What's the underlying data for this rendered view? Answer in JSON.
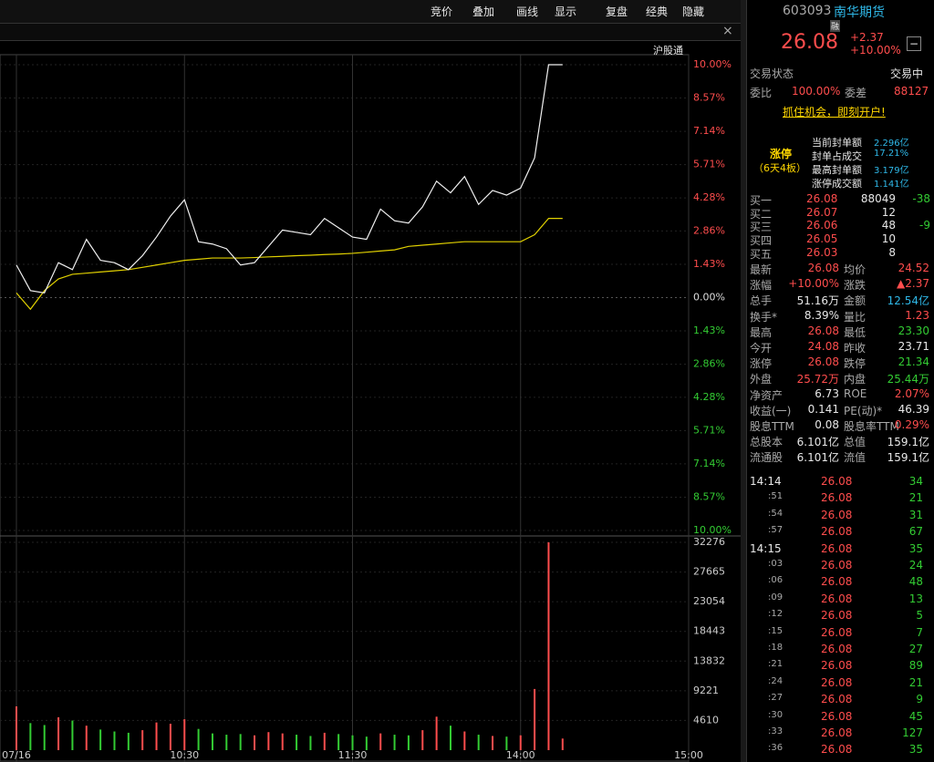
{
  "toolbar": [
    "竞价",
    "叠加",
    "画线",
    "显示",
    "复盘",
    "经典",
    "隐藏"
  ],
  "subbar": {
    "close": "×",
    "market": "沪股通"
  },
  "chart": {
    "xlim": [
      0,
      240
    ],
    "xticks": [
      {
        "value": 0,
        "label": "07/16"
      },
      {
        "value": 60,
        "label": "10:30"
      },
      {
        "value": 120,
        "label": "11:30"
      },
      {
        "value": 180,
        "label": "14:00"
      },
      {
        "value": 240,
        "label": "15:00"
      }
    ],
    "ylim": [
      -10,
      10
    ],
    "yticks": [
      {
        "value": 10,
        "label": "10.00%"
      },
      {
        "value": 8.57,
        "label": "8.57%"
      },
      {
        "value": 7.14,
        "label": "7.14%"
      },
      {
        "value": 5.71,
        "label": "5.71%"
      },
      {
        "value": 4.28,
        "label": "4.28%"
      },
      {
        "value": 2.86,
        "label": "2.86%"
      },
      {
        "value": 1.43,
        "label": "1.43%"
      },
      {
        "value": 0,
        "label": "0.00%"
      },
      {
        "value": -1.43,
        "label": "1.43%"
      },
      {
        "value": -2.86,
        "label": "2.86%"
      },
      {
        "value": -4.28,
        "label": "4.28%"
      },
      {
        "value": -5.71,
        "label": "5.71%"
      },
      {
        "value": -7.14,
        "label": "7.14%"
      },
      {
        "value": -8.57,
        "label": "8.57%"
      },
      {
        "value": -10,
        "label": "10.00%"
      }
    ],
    "x": [
      0,
      5,
      10,
      15,
      20,
      25,
      30,
      35,
      40,
      45,
      50,
      55,
      60,
      65,
      70,
      75,
      80,
      85,
      90,
      95,
      100,
      105,
      110,
      115,
      120,
      125,
      130,
      135,
      140,
      145,
      150,
      155,
      160,
      165,
      170,
      175,
      180,
      185,
      190,
      195
    ],
    "price": [
      1.4,
      0.3,
      0.2,
      1.5,
      1.2,
      2.5,
      1.6,
      1.5,
      1.2,
      1.8,
      2.6,
      3.5,
      4.2,
      2.4,
      2.3,
      2.1,
      1.4,
      1.5,
      2.2,
      2.9,
      2.8,
      2.7,
      3.4,
      3.0,
      2.6,
      2.5,
      3.8,
      3.3,
      3.2,
      3.9,
      5.0,
      4.5,
      5.2,
      4.0,
      4.6,
      4.4,
      4.7,
      6.0,
      10.0,
      10.0
    ],
    "average": [
      0.2,
      -0.5,
      0.3,
      0.8,
      1.0,
      1.05,
      1.1,
      1.15,
      1.2,
      1.3,
      1.4,
      1.5,
      1.6,
      1.65,
      1.7,
      1.7,
      1.7,
      1.72,
      1.75,
      1.77,
      1.8,
      1.82,
      1.85,
      1.87,
      1.9,
      1.95,
      2.0,
      2.05,
      2.2,
      2.25,
      2.3,
      2.35,
      2.4,
      2.4,
      2.4,
      2.4,
      2.4,
      2.7,
      3.4,
      3.4
    ],
    "vol_ylim": [
      0,
      32276
    ],
    "vol_ticks": [
      32276,
      27665,
      23054,
      18443,
      13832,
      9221,
      4610
    ],
    "volume": [
      6800,
      4200,
      3900,
      5100,
      4600,
      3800,
      3200,
      2900,
      2700,
      3100,
      4300,
      4100,
      4800,
      3300,
      2600,
      2400,
      2500,
      2300,
      2800,
      2600,
      2400,
      2200,
      2700,
      2500,
      2300,
      2100,
      2600,
      2400,
      2300,
      3100,
      5200,
      3800,
      2900,
      2400,
      2200,
      2100,
      2300,
      9500,
      32276,
      1800
    ]
  },
  "quote": {
    "code": "603093",
    "name": "南华期货",
    "tag": "融",
    "price": "26.08",
    "change": "+2.37",
    "pct": "+10.00%",
    "toggle": "−",
    "status": [
      "交易状态",
      "交易中"
    ],
    "ratio": [
      "委比",
      "100.00%",
      "委差",
      "88127"
    ],
    "ad": "抓住机会，即刻开户!",
    "limit": {
      "title": "涨停",
      "sub": "（6天4板）",
      "rows": [
        [
          "当前封单额",
          "2.296亿"
        ],
        [
          "封单占成交",
          "17.21%"
        ],
        [
          "最高封单额",
          "3.179亿"
        ],
        [
          "涨停成交额",
          "1.141亿"
        ]
      ]
    },
    "book": [
      [
        "买一",
        "26.08",
        "88049",
        "-38"
      ],
      [
        "买二",
        "26.07",
        "12",
        ""
      ],
      [
        "买三",
        "26.06",
        "48",
        "-9"
      ],
      [
        "买四",
        "26.05",
        "10",
        ""
      ],
      [
        "买五",
        "26.03",
        "8",
        ""
      ]
    ],
    "stats": [
      [
        "最新",
        "26.08",
        "均价",
        "24.52"
      ],
      [
        "涨幅",
        "+10.00%",
        "涨跌",
        "▲2.37"
      ],
      [
        "总手",
        "51.16万",
        "金额",
        "12.54亿"
      ],
      [
        "换手*",
        "8.39%",
        "量比",
        "1.23"
      ],
      [
        "最高",
        "26.08",
        "最低",
        "23.30"
      ],
      [
        "今开",
        "24.08",
        "昨收",
        "23.71"
      ],
      [
        "涨停",
        "26.08",
        "跌停",
        "21.34"
      ],
      [
        "外盘",
        "25.72万",
        "内盘",
        "25.44万"
      ],
      [
        "净资产",
        "6.73",
        "ROE",
        "2.07%"
      ],
      [
        "收益(一)",
        "0.141",
        "PE(动)*",
        "46.39"
      ],
      [
        "股息TTM",
        "0.08",
        "股息率TTM",
        "0.29%"
      ],
      [
        "总股本",
        "6.101亿",
        "总值",
        "159.1亿"
      ],
      [
        "流通股",
        "6.101亿",
        "流值",
        "159.1亿"
      ]
    ],
    "ticks": [
      [
        "14:14",
        "26.08",
        "34"
      ],
      [
        ":51",
        "26.08",
        "21"
      ],
      [
        ":54",
        "26.08",
        "31"
      ],
      [
        ":57",
        "26.08",
        "67"
      ],
      [
        "14:15",
        "26.08",
        "35"
      ],
      [
        ":03",
        "26.08",
        "24"
      ],
      [
        ":06",
        "26.08",
        "48"
      ],
      [
        ":09",
        "26.08",
        "13"
      ],
      [
        ":12",
        "26.08",
        "5"
      ],
      [
        ":15",
        "26.08",
        "7"
      ],
      [
        ":18",
        "26.08",
        "27"
      ],
      [
        ":21",
        "26.08",
        "89"
      ],
      [
        ":24",
        "26.08",
        "21"
      ],
      [
        ":27",
        "26.08",
        "9"
      ],
      [
        ":30",
        "26.08",
        "45"
      ],
      [
        ":33",
        "26.08",
        "127"
      ],
      [
        ":36",
        "26.08",
        "35"
      ]
    ]
  }
}
